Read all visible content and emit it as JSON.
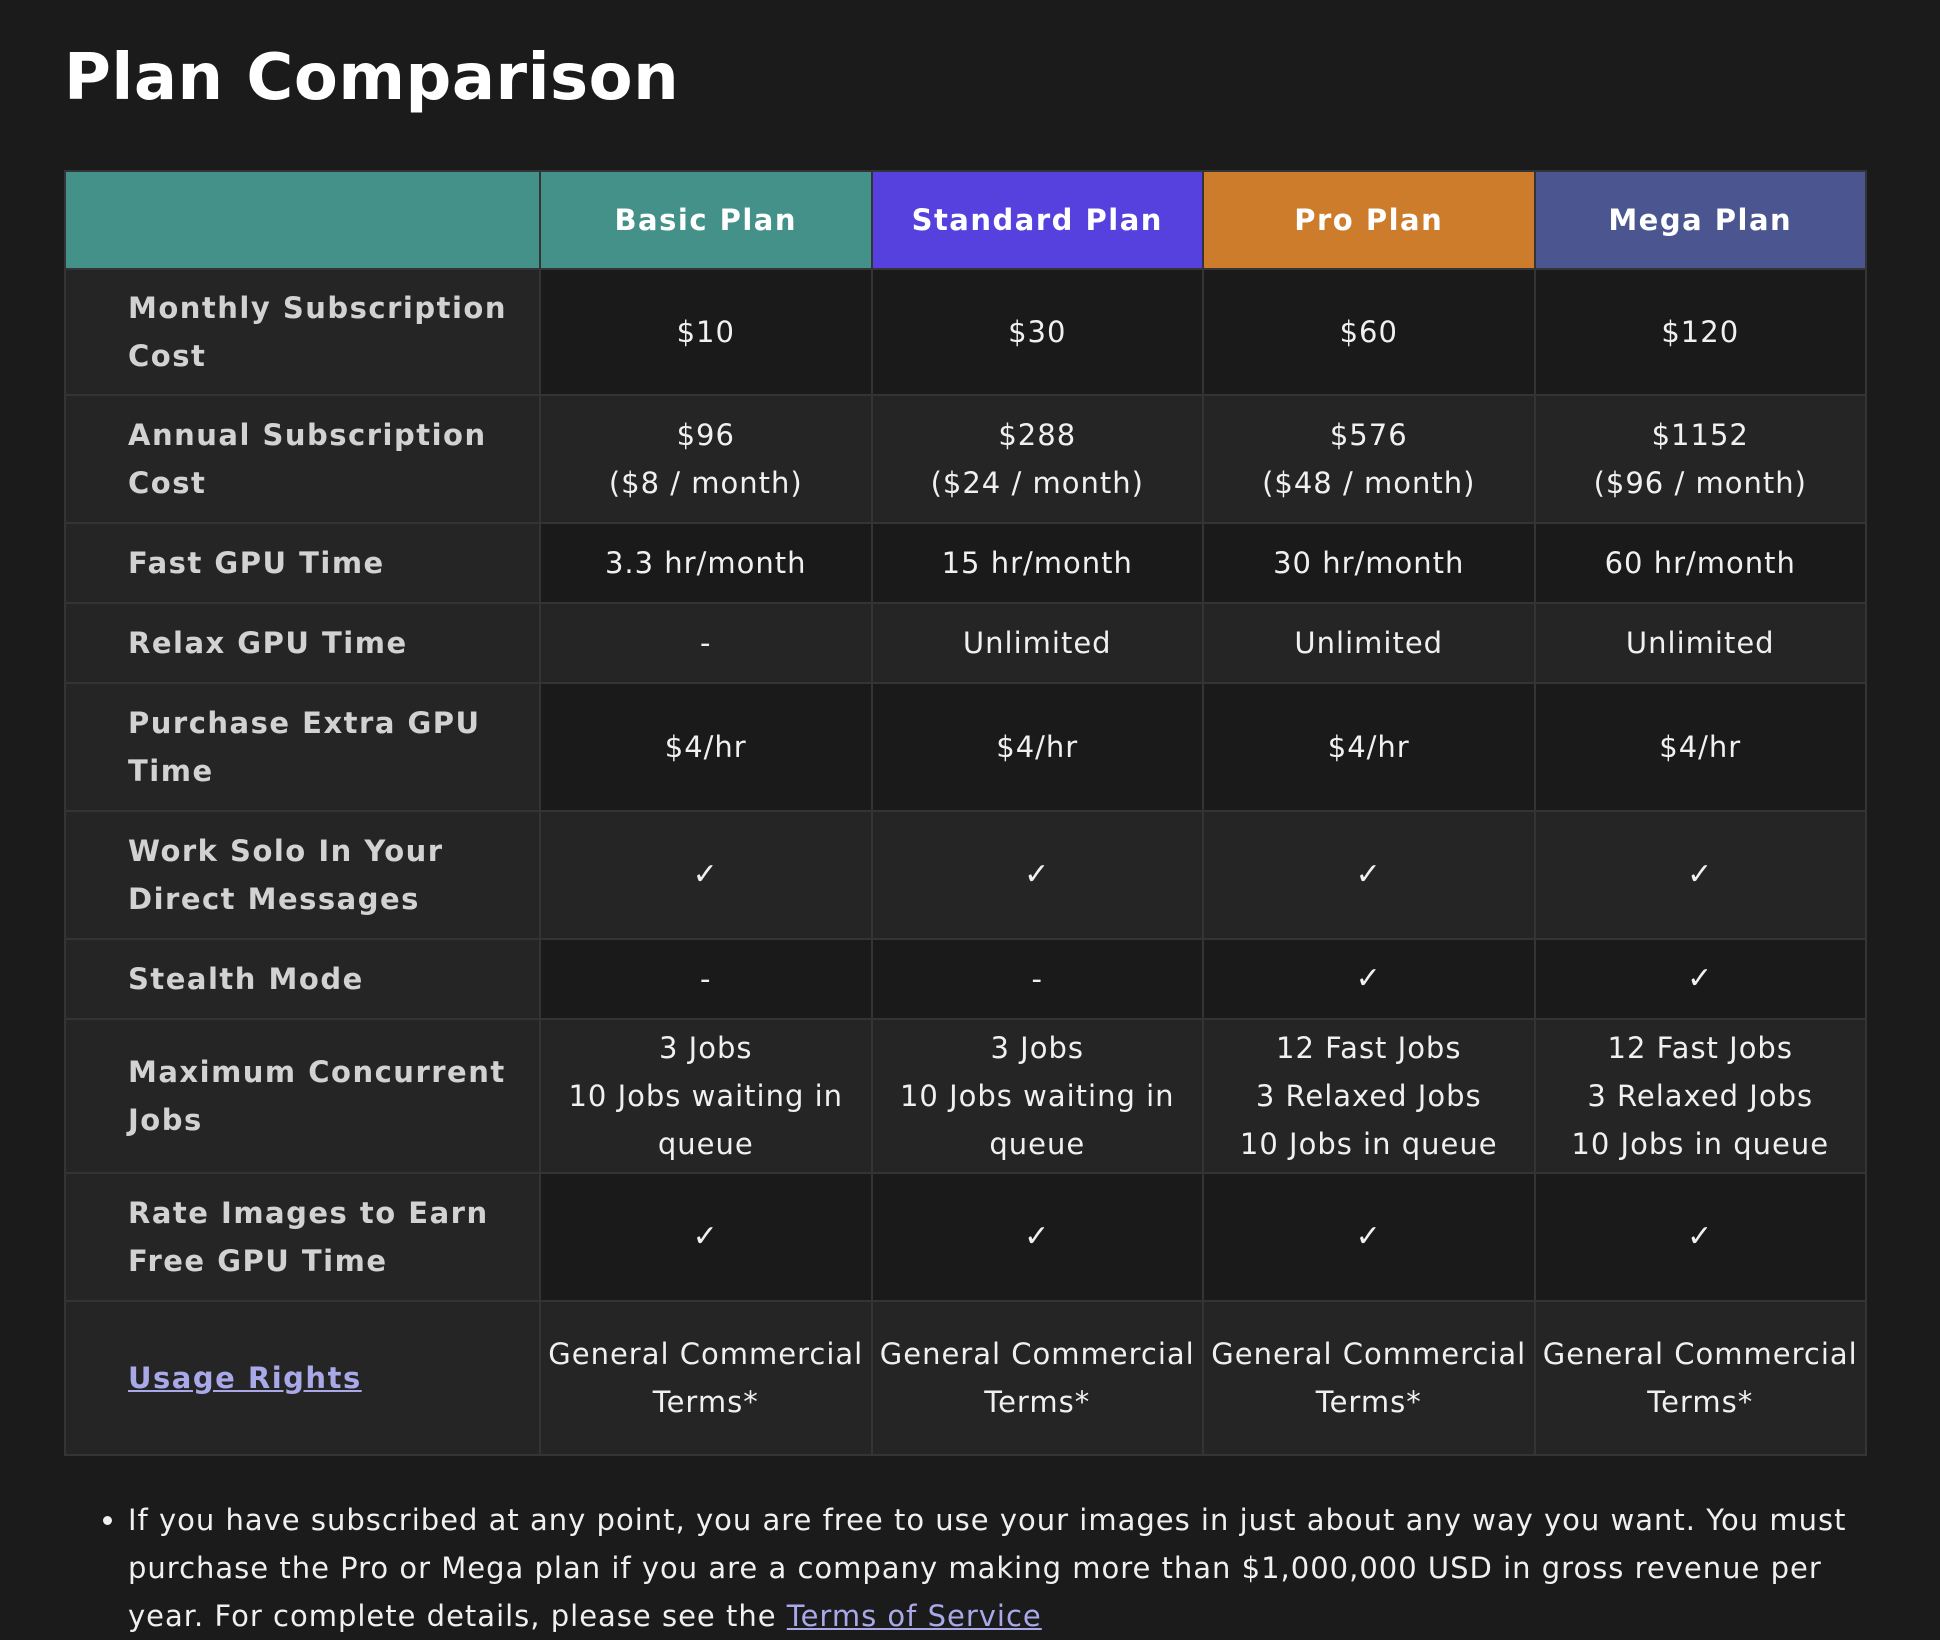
{
  "page": {
    "title": "Plan Comparison"
  },
  "colors": {
    "background": "#1b1b1c",
    "corner_header": "#449189",
    "basic": "#449189",
    "standard": "#5641de",
    "pro": "#cc7c2b",
    "mega": "#4b558f",
    "link": "#a9a9ea"
  },
  "table": {
    "plans": [
      {
        "name": "Basic Plan",
        "color": "#449189"
      },
      {
        "name": "Standard Plan",
        "color": "#5641de"
      },
      {
        "name": "Pro Plan",
        "color": "#cc7c2b"
      },
      {
        "name": "Mega Plan",
        "color": "#4b558f"
      }
    ],
    "rows": [
      {
        "feature": "Monthly Subscription Cost",
        "height": 126,
        "values": [
          [
            "$10"
          ],
          [
            "$30"
          ],
          [
            "$60"
          ],
          [
            "$120"
          ]
        ]
      },
      {
        "feature": "Annual Subscription Cost",
        "height": 128,
        "values": [
          [
            "$96",
            "($8 / month)"
          ],
          [
            "$288",
            "($24 / month)"
          ],
          [
            "$576",
            "($48 / month)"
          ],
          [
            "$1152",
            "($96 / month)"
          ]
        ]
      },
      {
        "feature": "Fast GPU Time",
        "height": 80,
        "values": [
          [
            "3.3 hr/month"
          ],
          [
            "15 hr/month"
          ],
          [
            "30 hr/month"
          ],
          [
            "60 hr/month"
          ]
        ]
      },
      {
        "feature": "Relax GPU Time",
        "height": 80,
        "values": [
          [
            "-"
          ],
          [
            "Unlimited"
          ],
          [
            "Unlimited"
          ],
          [
            "Unlimited"
          ]
        ]
      },
      {
        "feature": "Purchase Extra GPU Time",
        "height": 128,
        "values": [
          [
            "$4/hr"
          ],
          [
            "$4/hr"
          ],
          [
            "$4/hr"
          ],
          [
            "$4/hr"
          ]
        ]
      },
      {
        "feature": "Work Solo In Your Direct Messages",
        "height": 128,
        "values": [
          [
            "✓"
          ],
          [
            "✓"
          ],
          [
            "✓"
          ],
          [
            "✓"
          ]
        ]
      },
      {
        "feature": "Stealth Mode",
        "height": 80,
        "values": [
          [
            "-"
          ],
          [
            "-"
          ],
          [
            "✓"
          ],
          [
            "✓"
          ]
        ]
      },
      {
        "feature": "Maximum Concurrent Jobs",
        "height": 154,
        "values": [
          [
            "3 Jobs",
            "10 Jobs waiting in queue"
          ],
          [
            "3 Jobs",
            "10 Jobs waiting in queue"
          ],
          [
            "12 Fast Jobs",
            "3 Relaxed Jobs",
            "10 Jobs in queue"
          ],
          [
            "12 Fast Jobs",
            "3 Relaxed Jobs",
            "10 Jobs in queue"
          ]
        ]
      },
      {
        "feature": "Rate Images to Earn Free GPU Time",
        "height": 128,
        "values": [
          [
            "✓"
          ],
          [
            "✓"
          ],
          [
            "✓"
          ],
          [
            "✓"
          ]
        ]
      },
      {
        "feature": "Usage Rights",
        "feature_is_link": true,
        "height": 154,
        "values": [
          [
            "General Commercial Terms*"
          ],
          [
            "General Commercial Terms*"
          ],
          [
            "General Commercial Terms*"
          ],
          [
            "General Commercial Terms*"
          ]
        ]
      }
    ]
  },
  "notes": {
    "item_text": "If you have subscribed at any point, you are free to use your images in just about any way you want. You must purchase the Pro or Mega plan if you are a company making more than $1,000,000 USD in gross revenue per year. For complete details, please see the ",
    "link_text": "Terms of Service"
  }
}
